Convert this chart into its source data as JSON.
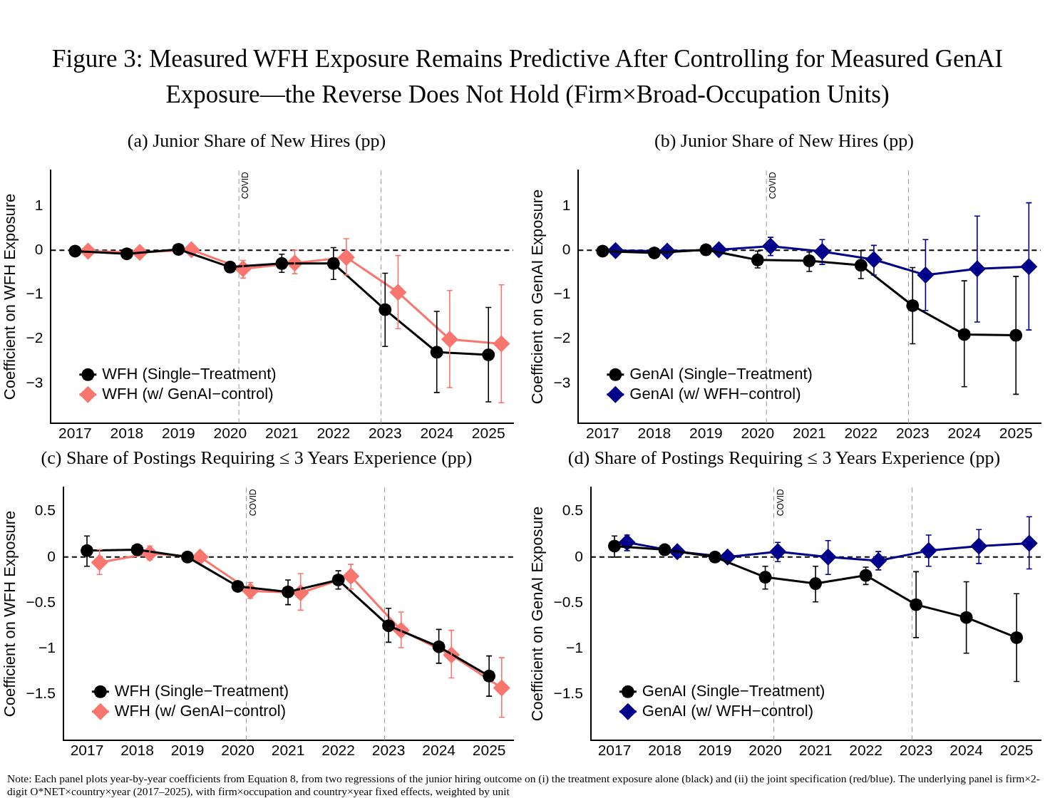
{
  "chart_data": [
    {
      "type": "other",
      "title": "Figure 3: Measured WFH Exposure Remains Predictive After Controlling for Measured GenAI Exposure—the Reverse Does Not Hold (Firm×Broad-Occupation Units)",
      "annotations": [
        "Note: Each panel plots year-by-year coefficients from Equation 8, from two regressions of the junior hiring outcome on (i) the treatment exposure alone (black) and (ii) the joint specification (red/blue). The underlying panel is firm×2-digit O*NET×country×year (2017–2025), with firm×occupation and country×year fixed effects, weighted by unit"
      ]
    },
    {
      "type": "line",
      "title": "(a) Junior Share of New Hires (pp)",
      "ylabel": "Coefficient on WFH Exposure",
      "xlim": [
        2016.53,
        2025.48
      ],
      "xticks": [
        2017,
        2018,
        2019,
        2020,
        2021,
        2022,
        2023,
        2024,
        2025
      ],
      "ylim": [
        -3.9,
        1.8
      ],
      "yticks": [
        1,
        0,
        {
          "value": -1,
          "label": "−1"
        },
        {
          "value": -2,
          "label": "−2"
        },
        {
          "value": -3,
          "label": "−3"
        }
      ],
      "grid": false,
      "legend": "bottom left",
      "line_style": "solid",
      "ref_lines": [
        {
          "axis": "y",
          "value": 0,
          "color": "#000000",
          "line_style": "dashed"
        },
        {
          "axis": "x",
          "value": 2020.17,
          "label": "COVID",
          "color": "#999999",
          "line_style": "dashed"
        },
        {
          "axis": "x",
          "value": 2022.92,
          "color": "#999999",
          "line_style": "dashed"
        }
      ],
      "series": [
        {
          "name": "WFH (Single−Treatment)",
          "color": "#000000",
          "marker": "circle",
          "x": [
            2017,
            2018,
            2019,
            2020,
            2021,
            2022,
            2023,
            2024,
            2025
          ],
          "values": [
            -0.02,
            -0.08,
            0.02,
            -0.38,
            -0.3,
            -0.3,
            -1.34,
            -2.3,
            -2.36
          ],
          "errors": [
            null,
            null,
            null,
            null,
            [
              -0.5,
              -0.09
            ],
            [
              -0.66,
              0.06
            ],
            [
              -2.17,
              -0.52
            ],
            [
              -3.21,
              -1.38
            ],
            [
              -3.42,
              -1.29
            ]
          ]
        },
        {
          "name": "WFH (w/ GenAI−control)",
          "color": "#f8766d",
          "marker": "diamond",
          "x": [
            2017.25,
            2018.25,
            2019.25,
            2020.25,
            2021.25,
            2022.25,
            2023.25,
            2024.25,
            2025.25
          ],
          "values": [
            -0.02,
            -0.05,
            0.01,
            -0.42,
            -0.29,
            -0.16,
            -0.95,
            -2.01,
            -2.11
          ],
          "errors": [
            null,
            null,
            null,
            [
              -0.63,
              -0.23
            ],
            [
              -0.53,
              0
            ],
            [
              -0.56,
              0.26
            ],
            [
              -1.77,
              -0.12
            ],
            [
              -3.1,
              -0.91
            ],
            [
              -3.44,
              -0.78
            ]
          ]
        }
      ]
    },
    {
      "type": "line",
      "title": "(b) Junior Share of New Hires (pp)",
      "ylabel": "Coefficient on GenAI Exposure",
      "xlim": [
        2016.53,
        2025.48
      ],
      "xticks": [
        2017,
        2018,
        2019,
        2020,
        2021,
        2022,
        2023,
        2024,
        2025
      ],
      "ylim": [
        -3.9,
        1.8
      ],
      "yticks": [
        1,
        0,
        {
          "value": -1,
          "label": "−1"
        },
        {
          "value": -2,
          "label": "−2"
        },
        {
          "value": -3,
          "label": "−3"
        }
      ],
      "grid": false,
      "legend": "bottom left",
      "line_style": "solid",
      "ref_lines": [
        {
          "axis": "y",
          "value": 0,
          "color": "#000000",
          "line_style": "dashed"
        },
        {
          "axis": "x",
          "value": 2020.17,
          "label": "COVID",
          "color": "#999999",
          "line_style": "dashed"
        },
        {
          "axis": "x",
          "value": 2022.92,
          "color": "#999999",
          "line_style": "dashed"
        }
      ],
      "series": [
        {
          "name": "GenAI (Single−Treatment)",
          "color": "#000000",
          "marker": "circle",
          "x": [
            2017,
            2018,
            2019,
            2020,
            2021,
            2022,
            2023,
            2024,
            2025
          ],
          "values": [
            -0.02,
            -0.06,
            0.01,
            -0.22,
            -0.24,
            -0.34,
            -1.25,
            -1.9,
            -1.92
          ],
          "errors": [
            null,
            null,
            null,
            [
              -0.4,
              -0.02
            ],
            [
              -0.48,
              -0.04
            ],
            [
              -0.64,
              -0.01
            ],
            [
              -2.11,
              -0.39
            ],
            [
              -3.08,
              -0.69
            ],
            [
              -3.25,
              -0.59
            ]
          ]
        },
        {
          "name": "GenAI (w/ WFH−control)",
          "color": "#00008b",
          "marker": "diamond",
          "x": [
            2017.25,
            2018.25,
            2019.25,
            2020.25,
            2021.25,
            2022.25,
            2023.25,
            2024.25,
            2025.25
          ],
          "values": [
            -0.01,
            -0.02,
            0.01,
            0.09,
            -0.03,
            -0.21,
            -0.56,
            -0.42,
            -0.37
          ],
          "errors": [
            null,
            null,
            null,
            [
              -0.12,
              0.29
            ],
            [
              -0.32,
              0.24
            ],
            [
              -0.56,
              0.11
            ],
            [
              -1.36,
              0.24
            ],
            [
              -1.62,
              0.77
            ],
            [
              -1.8,
              1.07
            ]
          ]
        }
      ]
    },
    {
      "type": "line",
      "title": "(c) Share of Postings Requiring ≤ 3 Years Experience (pp)",
      "ylabel": "Coefficient on WFH Exposure",
      "xlim": [
        2016.53,
        2025.48
      ],
      "xticks": [
        2017,
        2018,
        2019,
        2020,
        2021,
        2022,
        2023,
        2024,
        2025
      ],
      "ylim": [
        -2.0,
        0.76
      ],
      "yticks": [
        0.5,
        0,
        {
          "value": -0.5,
          "label": "−0.5"
        },
        {
          "value": -1,
          "label": "−1"
        },
        {
          "value": -1.5,
          "label": "−1.5"
        }
      ],
      "grid": false,
      "legend": "bottom left",
      "line_style": "solid",
      "ref_lines": [
        {
          "axis": "y",
          "value": 0,
          "color": "#000000",
          "line_style": "dashed"
        },
        {
          "axis": "x",
          "value": 2020.17,
          "label": "COVID",
          "color": "#999999",
          "line_style": "dashed"
        },
        {
          "axis": "x",
          "value": 2022.92,
          "color": "#999999",
          "line_style": "dashed"
        }
      ],
      "series": [
        {
          "name": "WFH (Single−Treatment)",
          "color": "#000000",
          "marker": "circle",
          "x": [
            2017,
            2018,
            2019,
            2020,
            2021,
            2022,
            2023,
            2024,
            2025
          ],
          "values": [
            0.07,
            0.08,
            0,
            -0.32,
            -0.38,
            -0.25,
            -0.75,
            -0.98,
            -1.3
          ],
          "errors": [
            [
              -0.1,
              0.23
            ],
            null,
            null,
            null,
            [
              -0.52,
              -0.25
            ],
            [
              -0.35,
              -0.15
            ],
            [
              -0.93,
              -0.56
            ],
            [
              -1.16,
              -0.79
            ],
            [
              -1.52,
              -1.08
            ]
          ]
        },
        {
          "name": "WFH (w/ GenAI−control)",
          "color": "#f8766d",
          "marker": "diamond",
          "x": [
            2017.25,
            2018.25,
            2019.25,
            2020.25,
            2021.25,
            2022.25,
            2023.25,
            2024.25,
            2025.25
          ],
          "values": [
            -0.06,
            0.04,
            0,
            -0.37,
            -0.39,
            -0.21,
            -0.8,
            -1.07,
            -1.43
          ],
          "errors": [
            [
              -0.19,
              0.08
            ],
            [
              -0.03,
              0.12
            ],
            null,
            [
              -0.45,
              -0.28
            ],
            [
              -0.58,
              -0.18
            ],
            [
              -0.35,
              -0.08
            ],
            [
              -0.99,
              -0.6
            ],
            [
              -1.32,
              -0.8
            ],
            [
              -1.75,
              -1.1
            ]
          ]
        }
      ]
    },
    {
      "type": "line",
      "title": "(d) Share of Postings Requiring ≤ 3 Years Experience (pp)",
      "ylabel": "Coefficient on GenAI Exposure",
      "xlim": [
        2016.53,
        2025.48
      ],
      "xticks": [
        2017,
        2018,
        2019,
        2020,
        2021,
        2022,
        2023,
        2024,
        2025
      ],
      "ylim": [
        -2.0,
        0.76
      ],
      "yticks": [
        0.5,
        0,
        {
          "value": -0.5,
          "label": "−0.5"
        },
        {
          "value": -1,
          "label": "−1"
        },
        {
          "value": -1.5,
          "label": "−1.5"
        }
      ],
      "grid": false,
      "legend": "bottom left",
      "line_style": "solid",
      "ref_lines": [
        {
          "axis": "y",
          "value": 0,
          "color": "#000000",
          "line_style": "dashed"
        },
        {
          "axis": "x",
          "value": 2020.17,
          "label": "COVID",
          "color": "#999999",
          "line_style": "dashed"
        },
        {
          "axis": "x",
          "value": 2022.92,
          "color": "#999999",
          "line_style": "dashed"
        }
      ],
      "series": [
        {
          "name": "GenAI (Single−Treatment)",
          "color": "#000000",
          "marker": "circle",
          "x": [
            2017,
            2018,
            2019,
            2020,
            2021,
            2022,
            2023,
            2024,
            2025
          ],
          "values": [
            0.12,
            0.08,
            0,
            -0.22,
            -0.29,
            -0.2,
            -0.52,
            -0.66,
            -0.88
          ],
          "errors": [
            [
              0,
              0.23
            ],
            null,
            null,
            [
              -0.35,
              -0.1
            ],
            [
              -0.49,
              -0.1
            ],
            [
              -0.3,
              -0.11
            ],
            [
              -0.88,
              -0.16
            ],
            [
              -1.05,
              -0.27
            ],
            [
              -1.36,
              -0.4
            ]
          ]
        },
        {
          "name": "GenAI (w/ WFH−control)",
          "color": "#00008b",
          "marker": "diamond",
          "x": [
            2017.25,
            2018.25,
            2019.25,
            2020.25,
            2021.25,
            2022.25,
            2023.25,
            2024.25,
            2025.25
          ],
          "values": [
            0.16,
            0.06,
            0,
            0.06,
            0,
            -0.04,
            0.07,
            0.12,
            0.15
          ],
          "errors": [
            [
              0.07,
              0.24
            ],
            null,
            null,
            [
              -0.05,
              0.16
            ],
            [
              -0.19,
              0.18
            ],
            [
              -0.14,
              0.06
            ],
            [
              -0.1,
              0.24
            ],
            [
              -0.07,
              0.3
            ],
            [
              -0.13,
              0.44
            ]
          ]
        }
      ]
    }
  ]
}
